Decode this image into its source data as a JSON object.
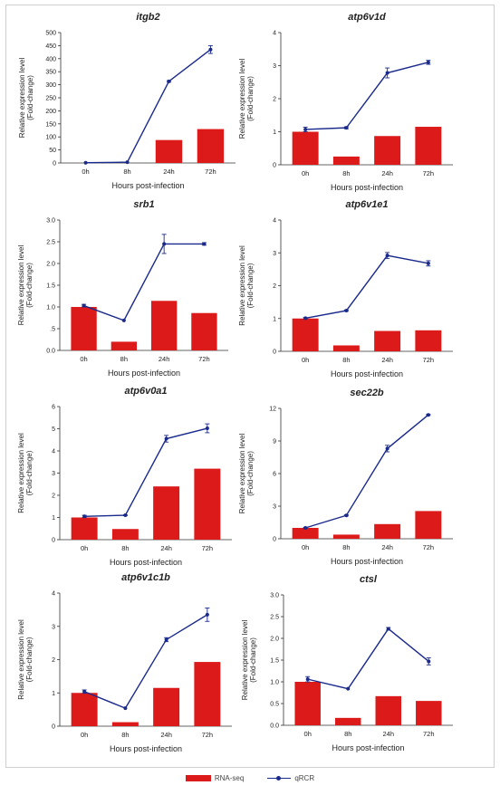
{
  "legend": {
    "bar_label": "RNA-seq",
    "line_label": "qRCR"
  },
  "colors": {
    "bar": "#dd1a1a",
    "line": "#1a2a8c"
  },
  "chart_data": [
    {
      "type": "bar+line",
      "title": "itgb2",
      "xlabel": "Hours post-infection",
      "ylabel": [
        "Relative expression level",
        "(Fold-change)"
      ],
      "categories": [
        "0h",
        "8h",
        "24h",
        "72h"
      ],
      "yticks": [
        "0",
        "50",
        "100",
        "150",
        "200",
        "250",
        "300",
        "350",
        "400",
        "450",
        "500"
      ],
      "ylim": [
        0,
        500
      ],
      "series": [
        {
          "name": "RNA-seq",
          "kind": "bar",
          "values": [
            0,
            0,
            88,
            130
          ]
        },
        {
          "name": "qRCR",
          "kind": "line",
          "values": [
            1,
            3,
            313,
            435
          ],
          "errors": [
            0,
            0,
            3,
            15
          ]
        }
      ]
    },
    {
      "type": "bar+line",
      "title": "atp6v1d",
      "xlabel": "Hours post-infection",
      "ylabel": [
        "Relative expression level",
        "(Fold-change)"
      ],
      "categories": [
        "0h",
        "8h",
        "24h",
        "72h"
      ],
      "yticks": [
        "0",
        "1",
        "2",
        "3",
        "4"
      ],
      "ylim": [
        0,
        4
      ],
      "series": [
        {
          "name": "RNA-seq",
          "kind": "bar",
          "values": [
            1.0,
            0.25,
            0.87,
            1.15
          ]
        },
        {
          "name": "qRCR",
          "kind": "line",
          "values": [
            1.07,
            1.12,
            2.78,
            3.1
          ],
          "errors": [
            0.07,
            0.03,
            0.15,
            0.06
          ]
        }
      ]
    },
    {
      "type": "bar+line",
      "title": "srb1",
      "xlabel": "Hours post-infection",
      "ylabel": [
        "Relative expression level",
        "(Fold-change)"
      ],
      "categories": [
        "0h",
        "8h",
        "24h",
        "72h"
      ],
      "yticks": [
        "0.0",
        ".5",
        "1.0",
        "1.5",
        "2.0",
        "2.5",
        "3.0"
      ],
      "ylim": [
        0,
        3
      ],
      "series": [
        {
          "name": "RNA-seq",
          "kind": "bar",
          "values": [
            1.0,
            0.2,
            1.14,
            0.86
          ]
        },
        {
          "name": "qRCR",
          "kind": "line",
          "values": [
            1.03,
            0.69,
            2.45,
            2.45
          ],
          "errors": [
            0.03,
            0,
            0.22,
            0.03
          ]
        }
      ]
    },
    {
      "type": "bar+line",
      "title": "atp6v1e1",
      "xlabel": "Hours post-infection",
      "ylabel": [
        "Relative expression level",
        "(Fold-change)"
      ],
      "categories": [
        "0h",
        "8h",
        "24h",
        "72h"
      ],
      "yticks": [
        "0",
        "1",
        "2",
        "3",
        "4"
      ],
      "ylim": [
        0,
        4
      ],
      "series": [
        {
          "name": "RNA-seq",
          "kind": "bar",
          "values": [
            1.0,
            0.18,
            0.62,
            0.64
          ]
        },
        {
          "name": "qRCR",
          "kind": "line",
          "values": [
            1.01,
            1.24,
            2.92,
            2.68
          ],
          "errors": [
            0.02,
            0.02,
            0.09,
            0.08
          ]
        }
      ]
    },
    {
      "type": "bar+line",
      "title": "atp6v0a1",
      "xlabel": "Hours post-infection",
      "ylabel": [
        "Relative expression level",
        "(Fold-change)"
      ],
      "categories": [
        "0h",
        "8h",
        "24h",
        "72h"
      ],
      "yticks": [
        "0",
        "1",
        "2",
        "3",
        "4",
        "5",
        "6"
      ],
      "ylim": [
        0,
        6
      ],
      "series": [
        {
          "name": "RNA-seq",
          "kind": "bar",
          "values": [
            1.0,
            0.48,
            2.4,
            3.2
          ]
        },
        {
          "name": "qRCR",
          "kind": "line",
          "values": [
            1.05,
            1.1,
            4.55,
            5.02
          ],
          "errors": [
            0.05,
            0.02,
            0.15,
            0.2
          ]
        }
      ]
    },
    {
      "type": "bar+line",
      "title": "sec22b",
      "xlabel": "Hours post-infection",
      "ylabel": [
        "Relative expression level",
        "(Fold-change)"
      ],
      "categories": [
        "0h",
        "8h",
        "24h",
        "72h"
      ],
      "yticks": [
        "0",
        "3",
        "6",
        "9",
        "12"
      ],
      "ylim": [
        0,
        12
      ],
      "series": [
        {
          "name": "RNA-seq",
          "kind": "bar",
          "values": [
            1.0,
            0.38,
            1.35,
            2.55
          ]
        },
        {
          "name": "qRCR",
          "kind": "line",
          "values": [
            1.0,
            2.15,
            8.3,
            11.4
          ],
          "errors": [
            0.05,
            0.05,
            0.3,
            0.05
          ]
        }
      ]
    },
    {
      "type": "bar+line",
      "title": "atp6v1c1b",
      "xlabel": "Hours post-infection",
      "ylabel": [
        "Relative expression level",
        "(Fold-change)"
      ],
      "categories": [
        "0h",
        "8h",
        "24h",
        "72h"
      ],
      "yticks": [
        "0",
        "1",
        "2",
        "3",
        "4"
      ],
      "ylim": [
        0,
        4
      ],
      "series": [
        {
          "name": "RNA-seq",
          "kind": "bar",
          "values": [
            1.0,
            0.12,
            1.15,
            1.93
          ]
        },
        {
          "name": "qRCR",
          "kind": "line",
          "values": [
            1.04,
            0.54,
            2.6,
            3.35
          ],
          "errors": [
            0.05,
            0,
            0.06,
            0.2
          ]
        }
      ]
    },
    {
      "type": "bar+line",
      "title": "ctsl",
      "xlabel": "Hours post-infection",
      "ylabel": [
        "Relative expression level",
        "(Fold-change)"
      ],
      "categories": [
        "0h",
        "8h",
        "24h",
        "72h"
      ],
      "yticks": [
        "0.0",
        "0.5",
        "1.0",
        "1.5",
        "2.0",
        "2.5",
        "3.0"
      ],
      "ylim": [
        0,
        3
      ],
      "series": [
        {
          "name": "RNA-seq",
          "kind": "bar",
          "values": [
            1.0,
            0.17,
            0.67,
            0.56
          ]
        },
        {
          "name": "qRCR",
          "kind": "line",
          "values": [
            1.06,
            0.84,
            2.22,
            1.47
          ],
          "errors": [
            0.06,
            0,
            0.03,
            0.08
          ]
        }
      ]
    }
  ]
}
